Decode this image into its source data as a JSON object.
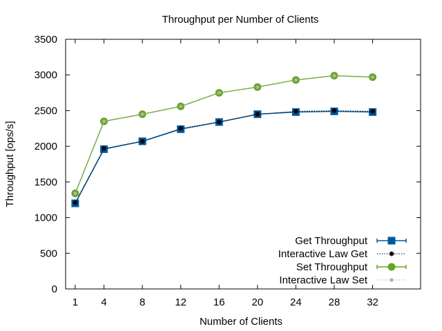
{
  "chart_data": {
    "type": "line",
    "title": "Throughput per Number of Clients",
    "xlabel": "Number of Clients",
    "ylabel": "Throughput [ops/s]",
    "x": [
      1,
      4,
      8,
      12,
      16,
      20,
      24,
      28,
      32
    ],
    "xlim": [
      0,
      37
    ],
    "ylim": [
      0,
      3500
    ],
    "xticks": [
      1,
      4,
      8,
      12,
      16,
      20,
      24,
      28,
      32
    ],
    "yticks": [
      0,
      500,
      1000,
      1500,
      2000,
      2500,
      3000,
      3500
    ],
    "grid": false,
    "legend_position": "bottom-right",
    "series": [
      {
        "name": "Get Throughput",
        "color": "#00589c",
        "marker": "square",
        "style": "solid",
        "values": [
          1200,
          1960,
          2070,
          2240,
          2340,
          2450,
          2480,
          2490,
          2480
        ]
      },
      {
        "name": "Interactive Law Get",
        "color": "#000000",
        "marker": "star",
        "style": "dotted",
        "values": [
          1210,
          1970,
          2070,
          2250,
          2340,
          2450,
          2490,
          2500,
          2490
        ]
      },
      {
        "name": "Set Throughput",
        "color": "#66a61e",
        "marker": "circle",
        "style": "solid",
        "values": [
          1340,
          2350,
          2450,
          2560,
          2750,
          2830,
          2930,
          2990,
          2970
        ]
      },
      {
        "name": "Interactive Law Set",
        "color": "#b0b0b0",
        "marker": "dot",
        "style": "dotted",
        "values": [
          1340,
          2350,
          2450,
          2560,
          2750,
          2830,
          2930,
          2990,
          2970
        ]
      }
    ]
  }
}
